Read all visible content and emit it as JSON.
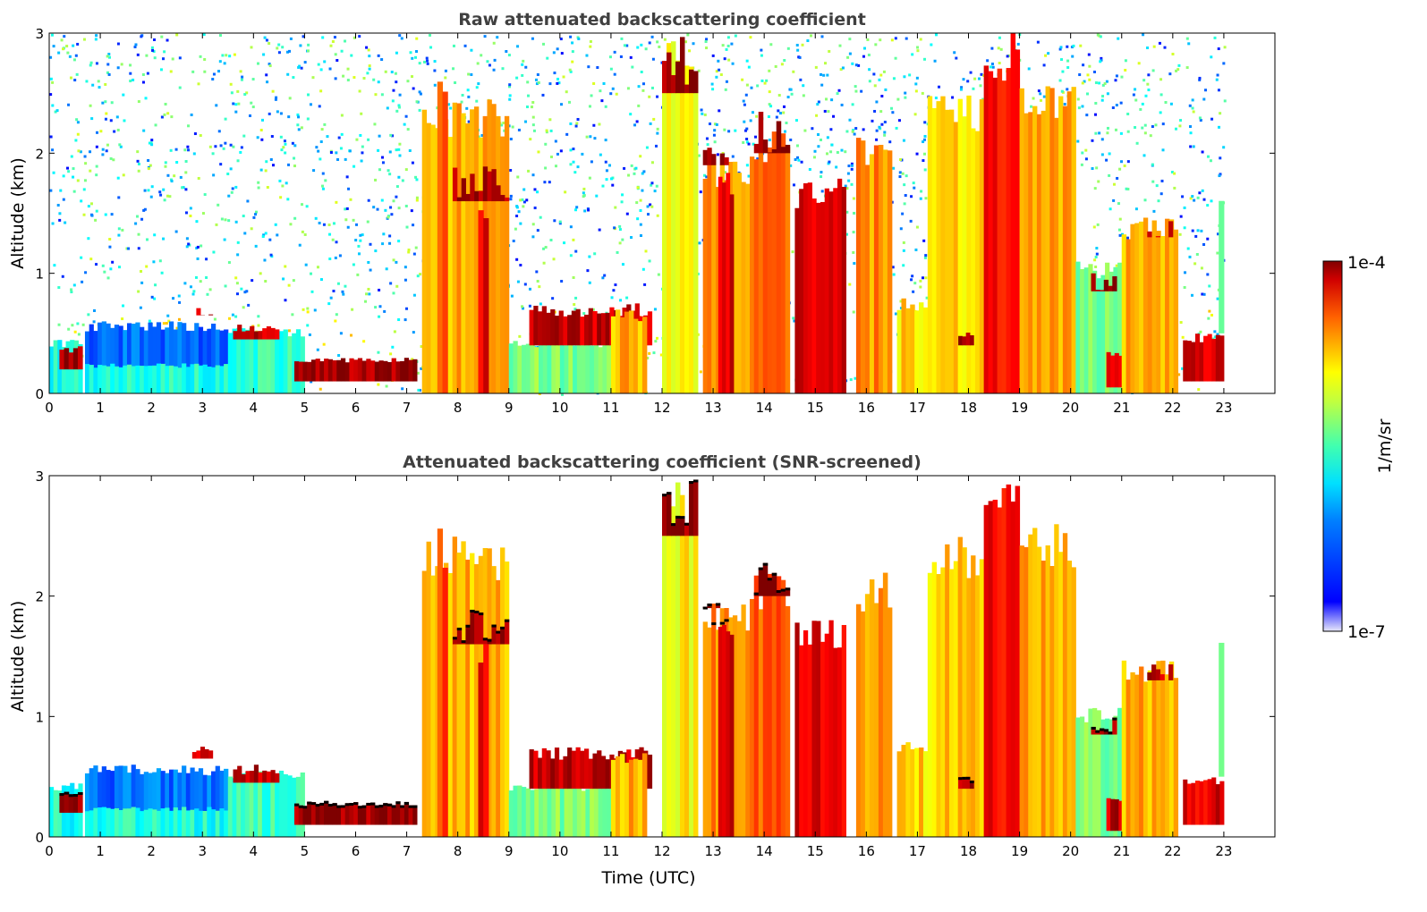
{
  "chart_data": [
    {
      "type": "heatmap",
      "id": "raw",
      "title": "Raw attenuated backscattering coefficient",
      "xlabel": "",
      "ylabel": "Altitude (km)",
      "xlim": [
        0,
        24
      ],
      "ylim": [
        0,
        3
      ],
      "xticks": [
        "0",
        "1",
        "2",
        "3",
        "4",
        "5",
        "6",
        "7",
        "8",
        "9",
        "10",
        "11",
        "12",
        "13",
        "14",
        "15",
        "16",
        "17",
        "18",
        "19",
        "20",
        "21",
        "22",
        "23"
      ],
      "yticks": [
        "0",
        "1",
        "2",
        "3"
      ],
      "noise_background": true
    },
    {
      "type": "heatmap",
      "id": "screened",
      "title": "Attenuated backscattering coefficient (SNR-screened)",
      "xlabel": "Time (UTC)",
      "ylabel": "Altitude (km)",
      "xlim": [
        0,
        24
      ],
      "ylim": [
        0,
        3
      ],
      "xticks": [
        "0",
        "1",
        "2",
        "3",
        "4",
        "5",
        "6",
        "7",
        "8",
        "9",
        "10",
        "11",
        "12",
        "13",
        "14",
        "15",
        "16",
        "17",
        "18",
        "19",
        "20",
        "21",
        "22",
        "23"
      ],
      "yticks": [
        "0",
        "1",
        "2",
        "3"
      ],
      "noise_background": false
    }
  ],
  "features": [
    {
      "t0": 0,
      "t1": 0.65,
      "z0": 0,
      "z1": 0.45,
      "log": -5.8
    },
    {
      "t0": 0.2,
      "t1": 0.65,
      "z0": 0.2,
      "z1": 0.4,
      "log": -4.1
    },
    {
      "t0": 0.7,
      "t1": 3.5,
      "z0": 0,
      "z1": 0.6,
      "log": -6.3
    },
    {
      "t0": 0.7,
      "t1": 3.5,
      "z0": 0,
      "z1": 0.25,
      "log": -5.8
    },
    {
      "t0": 2.8,
      "t1": 3.2,
      "z0": 0.65,
      "z1": 0.75,
      "log": -4.2
    },
    {
      "t0": 3.5,
      "t1": 5,
      "z0": 0,
      "z1": 0.55,
      "log": -5.7
    },
    {
      "t0": 3.6,
      "t1": 4.5,
      "z0": 0.45,
      "z1": 0.6,
      "log": -4.2
    },
    {
      "t0": 4.8,
      "t1": 7.2,
      "z0": 0.1,
      "z1": 0.3,
      "log": -4.1
    },
    {
      "t0": 7.3,
      "t1": 9,
      "z0": 0,
      "z1": 2.5,
      "log": -4.9
    },
    {
      "t0": 7.6,
      "t1": 7.8,
      "z0": 0,
      "z1": 2.6,
      "log": -4.6
    },
    {
      "t0": 7.9,
      "t1": 9,
      "z0": 1.6,
      "z1": 1.9,
      "log": -4.1
    },
    {
      "t0": 8.4,
      "t1": 8.6,
      "z0": 0,
      "z1": 1.7,
      "log": -4.3
    },
    {
      "t0": 9,
      "t1": 11,
      "z0": 0,
      "z1": 0.45,
      "log": -5.5
    },
    {
      "t0": 9.4,
      "t1": 11.8,
      "z0": 0.4,
      "z1": 0.75,
      "log": -4.2
    },
    {
      "t0": 11,
      "t1": 11.7,
      "z0": 0,
      "z1": 0.7,
      "log": -4.9
    },
    {
      "t0": 12,
      "t1": 12.7,
      "z0": 0,
      "z1": 3,
      "log": -5.1
    },
    {
      "t0": 12,
      "t1": 12.7,
      "z0": 2.5,
      "z1": 3,
      "log": -4.05
    },
    {
      "t0": 12.8,
      "t1": 13.8,
      "z0": 0,
      "z1": 2,
      "log": -4.8
    },
    {
      "t0": 12.8,
      "t1": 13.3,
      "z0": 1.9,
      "z1": 2.05,
      "log": -4.05
    },
    {
      "t0": 13.1,
      "t1": 13.4,
      "z0": 0,
      "z1": 1.9,
      "log": -4.3
    },
    {
      "t0": 13.8,
      "t1": 14.5,
      "z0": 0,
      "z1": 2.2,
      "log": -4.6
    },
    {
      "t0": 13.8,
      "t1": 14.5,
      "z0": 2.0,
      "z1": 2.35,
      "log": -4.05
    },
    {
      "t0": 14.6,
      "t1": 15.6,
      "z0": 0,
      "z1": 1.8,
      "log": -4.3
    },
    {
      "t0": 15.8,
      "t1": 16.5,
      "z0": 0,
      "z1": 2.2,
      "log": -4.8
    },
    {
      "t0": 16.6,
      "t1": 17.2,
      "z0": 0,
      "z1": 0.8,
      "log": -5.0
    },
    {
      "t0": 17.2,
      "t1": 18.3,
      "z0": 0,
      "z1": 2.5,
      "log": -5.0
    },
    {
      "t0": 17.8,
      "t1": 18.1,
      "z0": 0.4,
      "z1": 0.55,
      "log": -4.1
    },
    {
      "t0": 18.3,
      "t1": 19,
      "z0": 0,
      "z1": 3,
      "log": -4.4
    },
    {
      "t0": 19,
      "t1": 20.1,
      "z0": 0,
      "z1": 2.6,
      "log": -4.9
    },
    {
      "t0": 20.1,
      "t1": 21,
      "z0": 0,
      "z1": 1.1,
      "log": -5.5
    },
    {
      "t0": 20.4,
      "t1": 20.9,
      "z0": 0.85,
      "z1": 1.0,
      "log": -4.05
    },
    {
      "t0": 20.7,
      "t1": 21.1,
      "z0": 0.05,
      "z1": 0.35,
      "log": -4.2
    },
    {
      "t0": 21,
      "t1": 22.1,
      "z0": 0,
      "z1": 1.5,
      "log": -4.9
    },
    {
      "t0": 21.5,
      "t1": 22,
      "z0": 1.3,
      "z1": 1.45,
      "log": -4.2
    },
    {
      "t0": 22.2,
      "t1": 23,
      "z0": 0.1,
      "z1": 0.5,
      "log": -4.3
    },
    {
      "t0": 22.9,
      "t1": 23,
      "z0": 0.5,
      "z1": 1.8,
      "log": -5.4
    }
  ],
  "colorbar": {
    "label": "1/m/sr",
    "min_label": "1e-7",
    "max_label": "1e-4",
    "log_min": -7,
    "log_max": -4,
    "colormap": "jet"
  }
}
